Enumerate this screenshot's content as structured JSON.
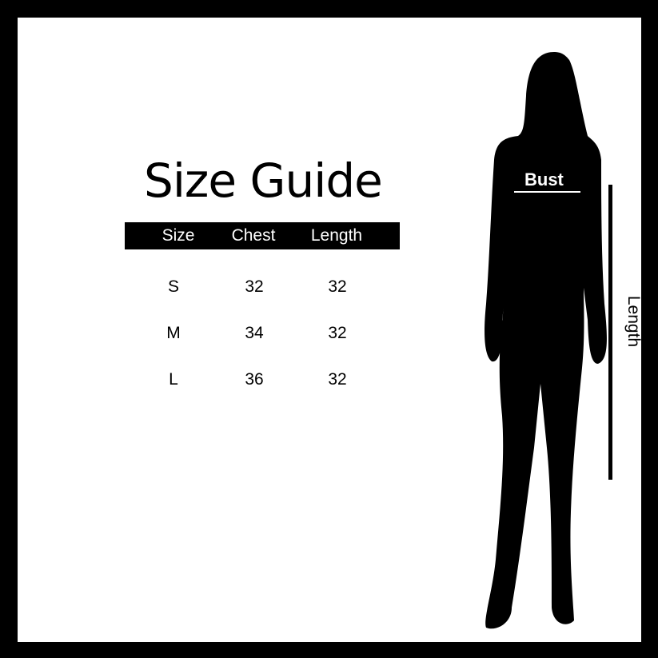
{
  "title": "Size Guide",
  "table": {
    "headers": [
      "Size",
      "Chest",
      "Length"
    ],
    "rows": [
      [
        "S",
        "32",
        "32"
      ],
      [
        "M",
        "34",
        "32"
      ],
      [
        "L",
        "36",
        "32"
      ]
    ]
  },
  "figure": {
    "bust_label": "Bust",
    "length_label": "Length"
  }
}
